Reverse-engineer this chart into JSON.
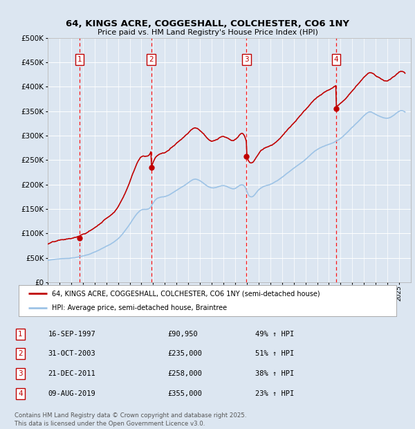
{
  "title": "64, KINGS ACRE, COGGESHALL, COLCHESTER, CO6 1NY",
  "subtitle": "Price paid vs. HM Land Registry's House Price Index (HPI)",
  "ylim": [
    0,
    500000
  ],
  "yticks": [
    0,
    50000,
    100000,
    150000,
    200000,
    250000,
    300000,
    350000,
    400000,
    450000,
    500000
  ],
  "xlim": [
    1995,
    2026
  ],
  "background_color": "#dce6f1",
  "plot_bg_color": "#dce6f1",
  "grid_color": "#ffffff",
  "red_line_color": "#c00000",
  "blue_line_color": "#9dc3e6",
  "marker_color": "#c00000",
  "dashed_line_color": "#ff0000",
  "transactions": [
    {
      "num": 1,
      "date": "16-SEP-1997",
      "price": 90950,
      "pct": "49%",
      "x_year": 1997.71
    },
    {
      "num": 2,
      "date": "31-OCT-2003",
      "price": 235000,
      "pct": "51%",
      "x_year": 2003.83
    },
    {
      "num": 3,
      "date": "21-DEC-2011",
      "price": 258000,
      "pct": "38%",
      "x_year": 2011.97
    },
    {
      "num": 4,
      "date": "09-AUG-2019",
      "price": 355000,
      "pct": "23%",
      "x_year": 2019.61
    }
  ],
  "legend_entries": [
    "64, KINGS ACRE, COGGESHALL, COLCHESTER, CO6 1NY (semi-detached house)",
    "HPI: Average price, semi-detached house, Braintree"
  ],
  "footer_text": "Contains HM Land Registry data © Crown copyright and database right 2025.\nThis data is licensed under the Open Government Licence v3.0."
}
